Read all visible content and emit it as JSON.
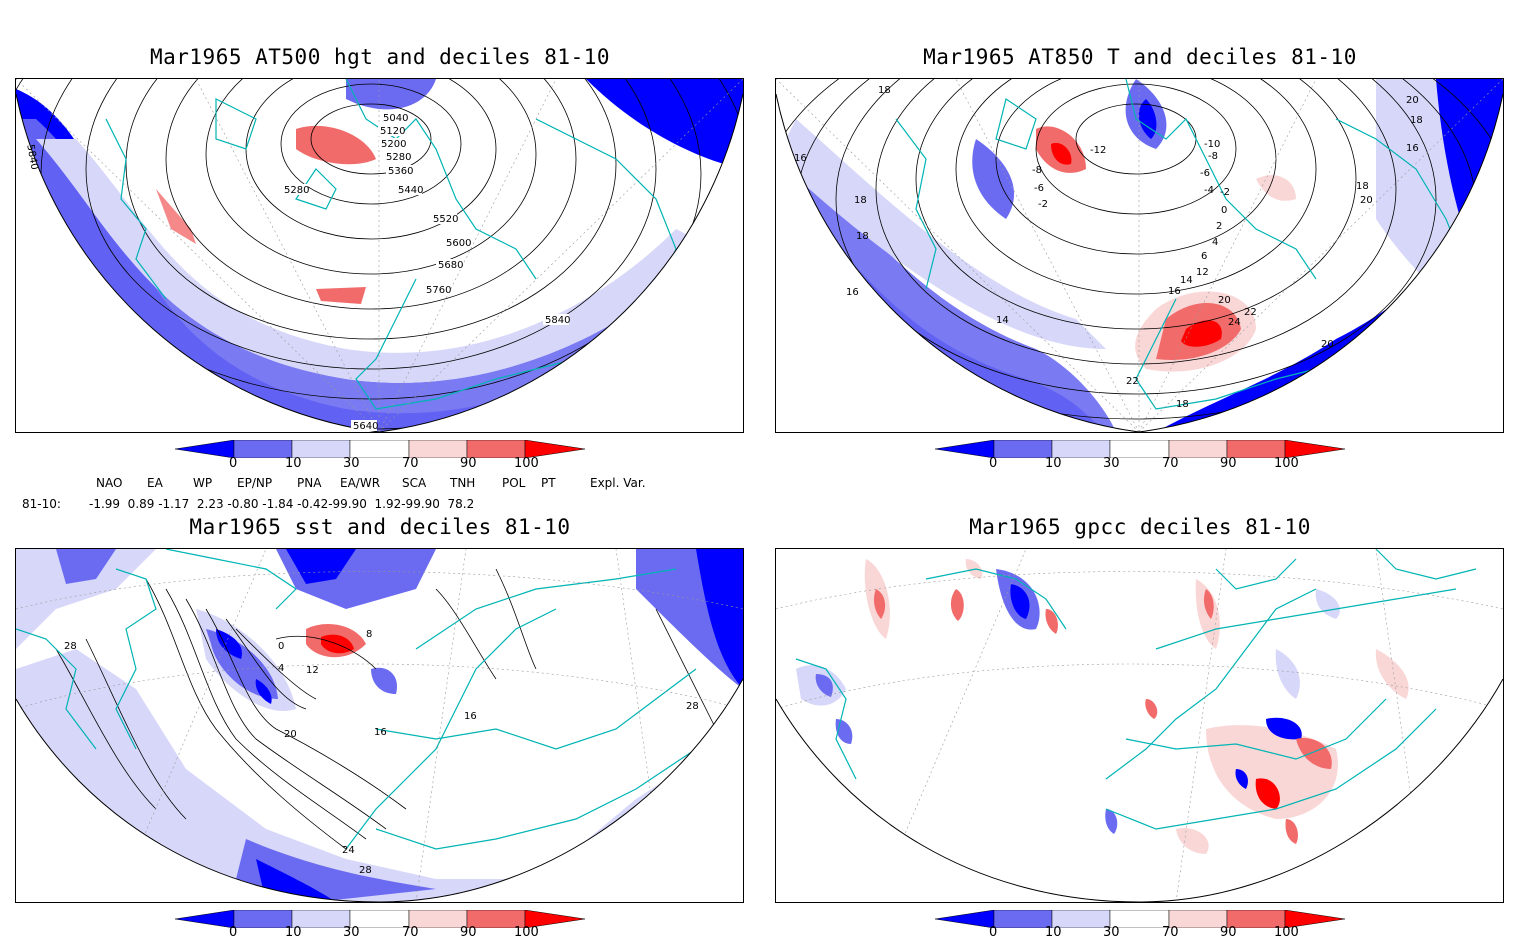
{
  "panels": [
    {
      "title": "Mar1965 AT500 hgt and deciles 81-10",
      "contour_labels": [
        "5040",
        "5120",
        "5200",
        "5280",
        "5360",
        "5280",
        "5440",
        "5520",
        "5600",
        "5680",
        "5760",
        "5840",
        "5840",
        "5640"
      ]
    },
    {
      "title": "Mar1965 AT850 T and deciles 81-10",
      "contour_labels": [
        "18",
        "16",
        "-8",
        "-6",
        "-2",
        "-12",
        "-10",
        "-8",
        "-6",
        "-4",
        "-2",
        "0",
        "2",
        "4",
        "6",
        "12",
        "14",
        "16",
        "18",
        "20",
        "22",
        "24",
        "20",
        "22",
        "20",
        "18",
        "18",
        "16",
        "14",
        "20",
        "18",
        "16",
        "18"
      ]
    },
    {
      "title": "Mar1965 sst and deciles 81-10",
      "contour_labels": [
        "28",
        "0",
        "4",
        "8",
        "12",
        "16",
        "20",
        "24",
        "28",
        "16",
        "28"
      ]
    },
    {
      "title": "Mar1965 gpcc deciles 81-10",
      "contour_labels": []
    }
  ],
  "colorbar": {
    "labels": [
      "0",
      "10",
      "30",
      "70",
      "90",
      "100"
    ],
    "colors": [
      "#0000ff",
      "#6b6bf2",
      "#d7d7fa",
      "#ffffff",
      "#fad7d7",
      "#f26b6b",
      "#ff0000"
    ]
  },
  "teleconnections": {
    "headers": [
      "NAO",
      "EA",
      "WP",
      "EP/NP",
      "PNA",
      "EA/WR",
      "SCA",
      "TNH",
      "POL",
      "PT",
      "Expl. Var."
    ],
    "row_label": "81-10:",
    "row_text": "-1.99  0.89 -1.17  2.23 -0.80 -1.84 -0.42-99.90  1.92-99.90  78.2"
  },
  "colors": {
    "coast": "#00b4b4",
    "contour": "#000000"
  }
}
